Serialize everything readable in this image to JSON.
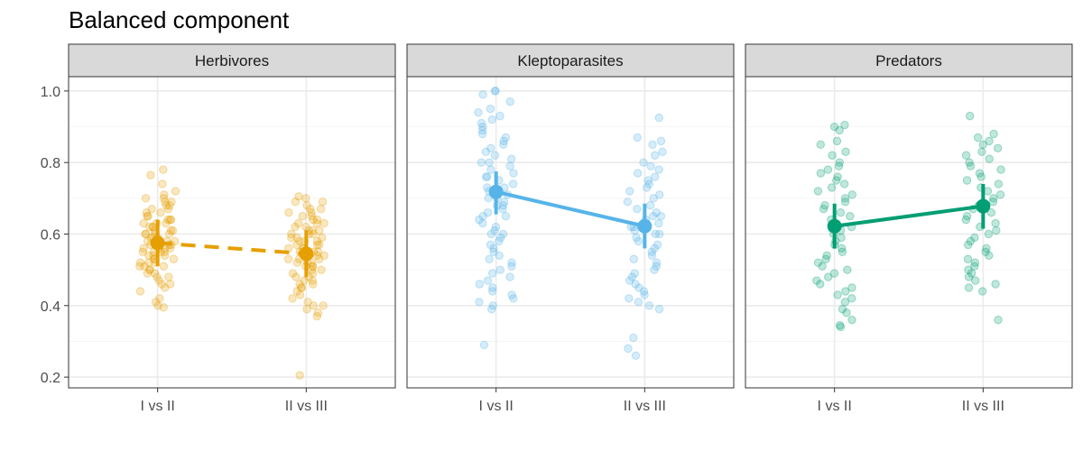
{
  "chart_data": {
    "type": "scatter",
    "title": "Balanced component",
    "xlabel": "",
    "ylabel": "",
    "categories": [
      "I vs II",
      "II vs III"
    ],
    "ylim": [
      0.17,
      1.04
    ],
    "yticks": [
      0.2,
      0.4,
      0.6,
      0.8,
      1.0
    ],
    "ytick_labels": [
      "0.2",
      "0.4",
      "0.6",
      "0.8",
      "1.0"
    ],
    "grid": true,
    "legend": "none",
    "panels": [
      {
        "label": "Herbivores",
        "color": "#E69F00",
        "line_style": "dashed",
        "summary": [
          {
            "category": "I vs II",
            "mean": 0.575,
            "lower": 0.51,
            "upper": 0.64
          },
          {
            "category": "II vs III",
            "mean": 0.545,
            "lower": 0.48,
            "upper": 0.61
          }
        ],
        "points": {
          "I vs II": [
            0.78,
            0.765,
            0.74,
            0.72,
            0.71,
            0.7,
            0.7,
            0.69,
            0.69,
            0.68,
            0.68,
            0.67,
            0.67,
            0.66,
            0.66,
            0.65,
            0.65,
            0.64,
            0.64,
            0.64,
            0.63,
            0.63,
            0.63,
            0.62,
            0.62,
            0.62,
            0.61,
            0.61,
            0.61,
            0.6,
            0.6,
            0.6,
            0.6,
            0.59,
            0.59,
            0.59,
            0.58,
            0.58,
            0.58,
            0.58,
            0.57,
            0.57,
            0.57,
            0.57,
            0.56,
            0.56,
            0.56,
            0.56,
            0.55,
            0.55,
            0.55,
            0.55,
            0.54,
            0.54,
            0.54,
            0.53,
            0.53,
            0.53,
            0.52,
            0.52,
            0.52,
            0.51,
            0.51,
            0.51,
            0.5,
            0.5,
            0.49,
            0.49,
            0.48,
            0.48,
            0.47,
            0.46,
            0.46,
            0.45,
            0.44,
            0.42,
            0.41,
            0.4,
            0.395
          ],
          "II vs III": [
            0.705,
            0.7,
            0.69,
            0.69,
            0.68,
            0.67,
            0.67,
            0.66,
            0.66,
            0.65,
            0.65,
            0.64,
            0.64,
            0.63,
            0.63,
            0.63,
            0.62,
            0.62,
            0.61,
            0.61,
            0.61,
            0.6,
            0.6,
            0.6,
            0.59,
            0.59,
            0.59,
            0.58,
            0.58,
            0.58,
            0.57,
            0.57,
            0.57,
            0.56,
            0.56,
            0.56,
            0.55,
            0.55,
            0.55,
            0.54,
            0.54,
            0.54,
            0.53,
            0.53,
            0.53,
            0.52,
            0.52,
            0.52,
            0.51,
            0.51,
            0.51,
            0.5,
            0.5,
            0.49,
            0.49,
            0.48,
            0.48,
            0.47,
            0.47,
            0.46,
            0.46,
            0.45,
            0.45,
            0.44,
            0.43,
            0.42,
            0.41,
            0.4,
            0.4,
            0.39,
            0.38,
            0.37,
            0.205
          ]
        }
      },
      {
        "label": "Kleptoparasites",
        "color": "#56B4E9",
        "line_style": "solid",
        "summary": [
          {
            "category": "I vs II",
            "mean": 0.718,
            "lower": 0.655,
            "upper": 0.775
          },
          {
            "category": "II vs III",
            "mean": 0.622,
            "lower": 0.56,
            "upper": 0.685
          }
        ],
        "points": {
          "I vs II": [
            1.0,
            1.0,
            0.99,
            0.97,
            0.95,
            0.94,
            0.93,
            0.92,
            0.91,
            0.9,
            0.89,
            0.88,
            0.87,
            0.86,
            0.85,
            0.84,
            0.83,
            0.82,
            0.81,
            0.8,
            0.8,
            0.79,
            0.78,
            0.77,
            0.76,
            0.76,
            0.75,
            0.74,
            0.73,
            0.73,
            0.72,
            0.71,
            0.7,
            0.7,
            0.69,
            0.68,
            0.68,
            0.67,
            0.66,
            0.65,
            0.65,
            0.64,
            0.63,
            0.62,
            0.61,
            0.6,
            0.6,
            0.59,
            0.58,
            0.57,
            0.56,
            0.55,
            0.54,
            0.53,
            0.52,
            0.51,
            0.5,
            0.49,
            0.48,
            0.47,
            0.46,
            0.45,
            0.44,
            0.43,
            0.42,
            0.41,
            0.4,
            0.39,
            0.29
          ],
          "II vs III": [
            0.925,
            0.87,
            0.86,
            0.85,
            0.83,
            0.82,
            0.8,
            0.79,
            0.78,
            0.77,
            0.76,
            0.75,
            0.74,
            0.73,
            0.72,
            0.71,
            0.7,
            0.69,
            0.68,
            0.67,
            0.66,
            0.65,
            0.65,
            0.64,
            0.63,
            0.62,
            0.62,
            0.61,
            0.6,
            0.6,
            0.59,
            0.58,
            0.57,
            0.56,
            0.55,
            0.54,
            0.53,
            0.52,
            0.51,
            0.5,
            0.49,
            0.48,
            0.47,
            0.46,
            0.45,
            0.44,
            0.43,
            0.42,
            0.41,
            0.4,
            0.39,
            0.31,
            0.28,
            0.26
          ]
        }
      },
      {
        "label": "Predators",
        "color": "#009E73",
        "line_style": "solid",
        "summary": [
          {
            "category": "I vs II",
            "mean": 0.622,
            "lower": 0.56,
            "upper": 0.685
          },
          {
            "category": "II vs III",
            "mean": 0.678,
            "lower": 0.615,
            "upper": 0.74
          }
        ],
        "points": {
          "I vs II": [
            0.905,
            0.9,
            0.89,
            0.86,
            0.85,
            0.83,
            0.82,
            0.8,
            0.79,
            0.78,
            0.77,
            0.76,
            0.75,
            0.74,
            0.73,
            0.72,
            0.71,
            0.7,
            0.69,
            0.68,
            0.67,
            0.66,
            0.65,
            0.64,
            0.63,
            0.62,
            0.61,
            0.6,
            0.59,
            0.58,
            0.57,
            0.56,
            0.55,
            0.54,
            0.53,
            0.52,
            0.51,
            0.5,
            0.49,
            0.48,
            0.47,
            0.46,
            0.45,
            0.44,
            0.43,
            0.42,
            0.41,
            0.39,
            0.38,
            0.36,
            0.345,
            0.34
          ],
          "II vs III": [
            0.93,
            0.88,
            0.87,
            0.86,
            0.85,
            0.84,
            0.83,
            0.82,
            0.81,
            0.8,
            0.79,
            0.78,
            0.77,
            0.76,
            0.75,
            0.74,
            0.73,
            0.72,
            0.71,
            0.7,
            0.69,
            0.68,
            0.67,
            0.66,
            0.65,
            0.64,
            0.63,
            0.62,
            0.61,
            0.6,
            0.59,
            0.58,
            0.57,
            0.56,
            0.55,
            0.54,
            0.53,
            0.52,
            0.51,
            0.5,
            0.49,
            0.48,
            0.47,
            0.46,
            0.45,
            0.44,
            0.36
          ]
        }
      }
    ]
  }
}
